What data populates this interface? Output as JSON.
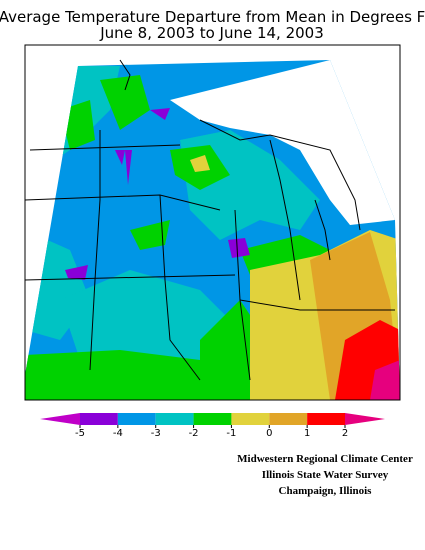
{
  "title": "Average Temperature Departure from Mean in Degrees F",
  "subtitle": "June 8, 2003 to June 14, 2003",
  "legend": {
    "ticks": [
      -5,
      -4,
      -3,
      -2,
      -1,
      0,
      1,
      2
    ],
    "under_color": "#c000c8",
    "colors": [
      "#8a00d8",
      "#0096e6",
      "#00c3c3",
      "#00d200",
      "#e1d23c",
      "#e1a528",
      "#ff0000"
    ],
    "over_color": "#e6007e"
  },
  "credits": [
    "Midwestern Regional Climate Center",
    "Illinois State Water Survey",
    "Champaign, Illinois"
  ]
}
